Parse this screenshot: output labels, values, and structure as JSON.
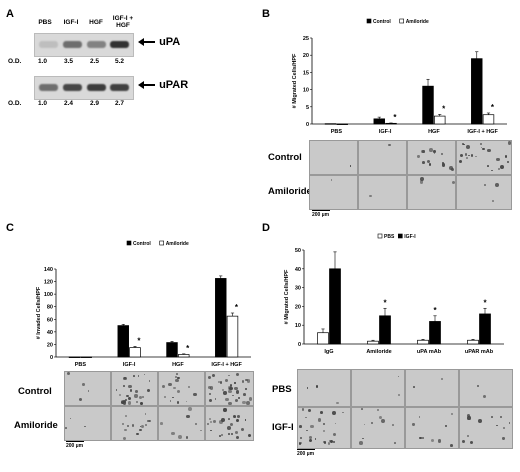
{
  "panelA": {
    "label": "A",
    "lanes": [
      "PBS",
      "IGF-I",
      "HGF",
      "IGF-I +\nHGF"
    ],
    "upa": {
      "name": "uPA",
      "od_label": "O.D.",
      "od": [
        "1.0",
        "3.5",
        "2.5",
        "5.2"
      ],
      "band_intensity": [
        0.15,
        0.55,
        0.45,
        0.85
      ]
    },
    "upar": {
      "name": "uPAR",
      "od_label": "O.D.",
      "od": [
        "1.0",
        "2.4",
        "2.9",
        "2.7"
      ],
      "band_intensity": [
        0.55,
        0.75,
        0.8,
        0.78
      ]
    }
  },
  "panelB": {
    "label": "B",
    "row_labels": [
      "Control",
      "Amiloride"
    ],
    "scale_bar": "200 µm"
  },
  "panelC": {
    "label": "C",
    "row_labels": [
      "Control",
      "Amiloride"
    ],
    "scale_bar": "200 µm"
  },
  "panelD": {
    "label": "D",
    "row_labels": [
      "PBS",
      "IGF-I"
    ],
    "scale_bar": "200 µm"
  },
  "colors": {
    "dark": "#000000",
    "light": "#ffffff",
    "micro_bg": "#c9c9c9"
  },
  "chart_data": [
    {
      "id": "B",
      "type": "bar",
      "ylabel": "# Migrated Cells/HPF",
      "ylim": [
        0,
        25
      ],
      "yticks": [
        0,
        5,
        10,
        15,
        20,
        25
      ],
      "categories": [
        "PBS",
        "IGF-I",
        "HGF",
        "IGF-I + HGF"
      ],
      "series": [
        {
          "name": "Control",
          "color": "#000000",
          "values": [
            0.1,
            1.5,
            11,
            19
          ],
          "err": [
            0,
            0.5,
            2,
            2
          ]
        },
        {
          "name": "Amiloride",
          "color": "#ffffff",
          "values": [
            0,
            0.2,
            2.3,
            2.7
          ],
          "err": [
            0,
            0.1,
            0.5,
            0.5
          ]
        }
      ],
      "star_on": [
        false,
        true,
        true,
        true
      ],
      "legend_placement": "top-center"
    },
    {
      "id": "C",
      "type": "bar",
      "ylabel": "# Invaded Cells/HPF",
      "ylim": [
        0,
        140
      ],
      "yticks": [
        0,
        20,
        40,
        60,
        80,
        100,
        120,
        140
      ],
      "categories": [
        "PBS",
        "IGF-I",
        "HGF",
        "IGF-I + HGF"
      ],
      "series": [
        {
          "name": "Control",
          "color": "#000000",
          "values": [
            0,
            50,
            23,
            125
          ],
          "err": [
            0,
            2,
            2,
            4
          ]
        },
        {
          "name": "Amiloride",
          "color": "#ffffff",
          "values": [
            0,
            15,
            4,
            65
          ],
          "err": [
            0,
            2,
            1,
            5
          ]
        }
      ],
      "star_on": [
        false,
        true,
        true,
        true
      ],
      "legend_placement": "top-center"
    },
    {
      "id": "D",
      "type": "bar",
      "ylabel": "# Migrated Cells/HPF",
      "ylim": [
        0,
        50
      ],
      "yticks": [
        0,
        10,
        20,
        30,
        40,
        50
      ],
      "categories": [
        "IgG",
        "Amiloride",
        "uPA mAb",
        "uPAR mAb"
      ],
      "series": [
        {
          "name": "PBS",
          "color": "#ffffff",
          "values": [
            6,
            1.5,
            2,
            2
          ],
          "err": [
            2,
            0.5,
            0.5,
            0.5
          ]
        },
        {
          "name": "IGF-I",
          "color": "#000000",
          "values": [
            40,
            15,
            12,
            16
          ],
          "err": [
            9,
            4,
            3,
            3
          ]
        }
      ],
      "star_on": [
        false,
        true,
        true,
        true
      ],
      "legend_placement": "top-center"
    }
  ]
}
